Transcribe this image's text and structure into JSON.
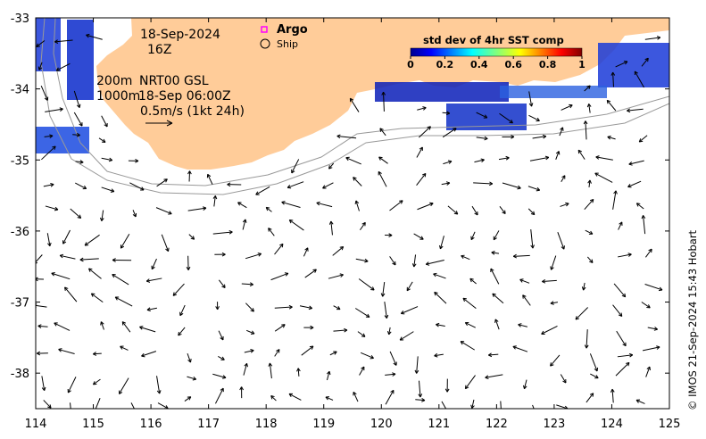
{
  "map": {
    "lon_ticks": [
      "114",
      "115",
      "116",
      "117",
      "118",
      "119",
      "120",
      "121",
      "122",
      "123",
      "124",
      "125"
    ],
    "lat_ticks": [
      "-33",
      "-34",
      "-35",
      "-36",
      "-37",
      "-38"
    ],
    "lon_range": [
      114,
      125
    ],
    "lat_range": [
      -38.5,
      -33
    ]
  },
  "annotations": {
    "date": "18-Sep-2024",
    "hour": "16Z",
    "contour_1": "200m",
    "contour_2": "1000m",
    "product": "NRT00 GSL",
    "product_time": "18-Sep 06:00Z",
    "scale": "0.5m/s (1kt 24h)"
  },
  "legend": {
    "argo": "Argo",
    "ship": "Ship",
    "colorbar_title": "std dev of 4hr SST comp",
    "colorbar_ticks": [
      "0",
      "0.2",
      "0.4",
      "0.6",
      "0.8",
      "1"
    ]
  },
  "credit": "© IMOS 21-Sep-2024 15:43 Hobart",
  "colors": {
    "land": "#ffcc99",
    "arrow": "#000000",
    "contour": "#999999"
  }
}
